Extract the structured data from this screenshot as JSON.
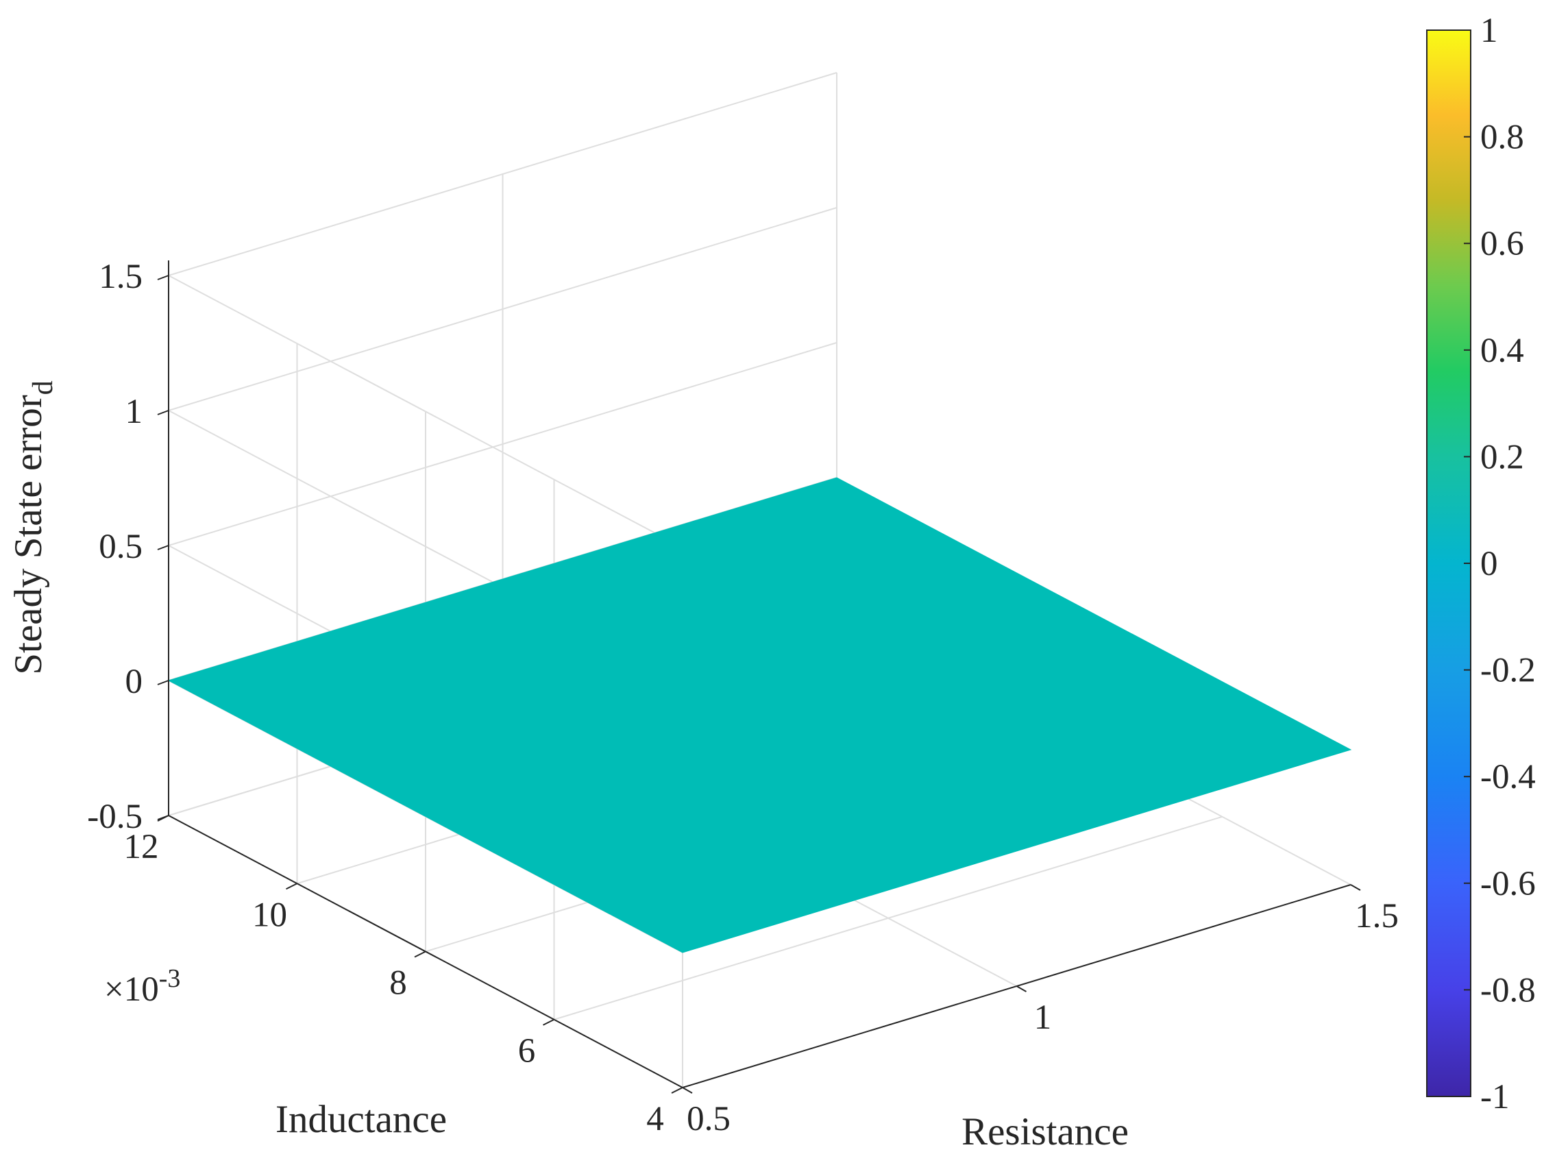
{
  "chart_data": {
    "type": "surface",
    "title": "",
    "x_axis": {
      "label": "Resistance",
      "ticks": [
        0.5,
        1,
        1.5
      ],
      "tick_labels": [
        "0.5",
        "1",
        "1.5"
      ],
      "lim": [
        0.5,
        1.5
      ]
    },
    "y_axis": {
      "label": "Inductance",
      "ticks": [
        4,
        6,
        8,
        10,
        12
      ],
      "tick_labels": [
        "4",
        "6",
        "8",
        "10",
        "12"
      ],
      "exponent_label": "×10",
      "exponent_power": "-3",
      "lim": [
        0.004,
        0.012
      ]
    },
    "z_axis": {
      "label": "Steady State error",
      "label_subscript": "d",
      "ticks": [
        -0.5,
        0,
        0.5,
        1,
        1.5
      ],
      "tick_labels": [
        "-0.5",
        "0",
        "0.5",
        "1",
        "1.5"
      ],
      "lim": [
        -0.5,
        1.5
      ]
    },
    "surface": {
      "description": "flat plane",
      "z_value": 0,
      "color": "#00bdb6",
      "x_range": [
        0.5,
        1.5
      ],
      "y_range": [
        0.004,
        0.012
      ]
    },
    "colorbar": {
      "colormap": "parula",
      "range": [
        -1,
        1
      ],
      "ticks": [
        -1,
        -0.8,
        -0.6,
        -0.4,
        -0.2,
        0,
        0.2,
        0.4,
        0.6,
        0.8,
        1
      ],
      "tick_labels": [
        "-1",
        "-0.8",
        "-0.6",
        "-0.4",
        "-0.2",
        "0",
        "0.2",
        "0.4",
        "0.6",
        "0.8",
        "1"
      ]
    },
    "grid": true,
    "colors": {
      "axis": "#262626",
      "grid": "#dedede",
      "surface": "#00bdb6"
    }
  }
}
